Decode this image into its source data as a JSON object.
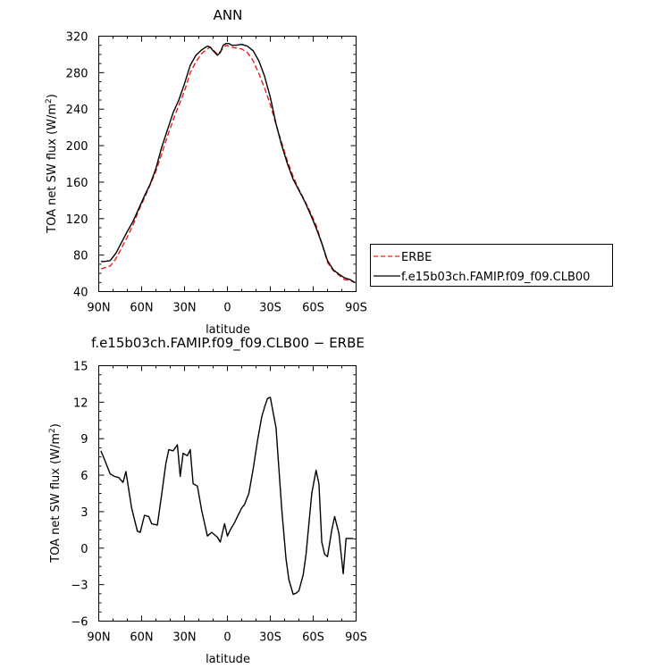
{
  "chart_data": [
    {
      "type": "line",
      "title": "ANN",
      "xlabel": "latitude",
      "ylabel": "TOA net SW flux (W/m",
      "ylabel_sup": "2",
      "ylabel_close": ")",
      "xlim": [
        90,
        -90
      ],
      "ylim": [
        40,
        320
      ],
      "x_ticks": [
        90,
        60,
        30,
        0,
        -30,
        -60,
        -90
      ],
      "x_tick_labels": [
        "90N",
        "60N",
        "30N",
        "0",
        "30S",
        "60S",
        "90S"
      ],
      "y_ticks": [
        40,
        80,
        120,
        160,
        200,
        240,
        280,
        320
      ],
      "y_tick_labels": [
        "40",
        "80",
        "120",
        "160",
        "200",
        "240",
        "280",
        "320"
      ],
      "legend_position": "right",
      "series": [
        {
          "name": "ERBE",
          "color": "#e8201a",
          "dash": "dashed",
          "x": [
            88.5,
            86,
            82,
            78,
            74,
            70,
            66,
            62,
            58,
            54,
            50,
            46,
            42,
            38,
            34,
            30,
            26,
            22,
            18,
            14,
            12,
            10,
            7,
            5,
            3,
            1,
            -1,
            -3,
            -6,
            -10,
            -14,
            -18,
            -22,
            -26,
            -30,
            -34,
            -38,
            -42,
            -46,
            -50,
            -54,
            -58,
            -62,
            -66,
            -70,
            -74,
            -78,
            -82,
            -86,
            -89
          ],
          "values": [
            65,
            66,
            68,
            76,
            88,
            100,
            113,
            129,
            143,
            157,
            172,
            191,
            210,
            228,
            244,
            260,
            280,
            292,
            301,
            306,
            308,
            305,
            300,
            303,
            307,
            310,
            309,
            308,
            307,
            306,
            302,
            293,
            279,
            263,
            245,
            223,
            203,
            183,
            166,
            152,
            140,
            127,
            113,
            93,
            72,
            63,
            58,
            53,
            52,
            50
          ]
        },
        {
          "name": "f.e15b03ch.FAMIP.f09_f09.CLB00",
          "color": "#000000",
          "dash": "solid",
          "x": [
            88.5,
            86,
            82,
            78,
            74,
            70,
            66,
            62,
            58,
            54,
            50,
            46,
            42,
            38,
            34,
            30,
            26,
            22,
            18,
            14,
            12,
            10,
            7,
            5,
            3,
            1,
            -1,
            -3,
            -6,
            -10,
            -14,
            -18,
            -22,
            -26,
            -30,
            -34,
            -38,
            -42,
            -46,
            -50,
            -54,
            -58,
            -62,
            -66,
            -70,
            -74,
            -78,
            -82,
            -86,
            -89
          ],
          "values": [
            73,
            73,
            74,
            82,
            94,
            106,
            117,
            131,
            145,
            158,
            175,
            198,
            217,
            236,
            250,
            268,
            288,
            299,
            305,
            309,
            308,
            304,
            299,
            302,
            310,
            312,
            312,
            310,
            310,
            311,
            309,
            304,
            293,
            276,
            253,
            224,
            200,
            180,
            163,
            151,
            139,
            125,
            110,
            93,
            74,
            64,
            59,
            55,
            53,
            50
          ]
        }
      ]
    },
    {
      "type": "line",
      "title": "f.e15b03ch.FAMIP.f09_f09.CLB00 − ERBE",
      "xlabel": "latitude",
      "ylabel": "TOA net SW flux (W/m",
      "ylabel_sup": "2",
      "ylabel_close": ")",
      "xlim": [
        90,
        -90
      ],
      "ylim": [
        -6,
        15
      ],
      "x_ticks": [
        90,
        60,
        30,
        0,
        -30,
        -60,
        -90
      ],
      "x_tick_labels": [
        "90N",
        "60N",
        "30N",
        "0",
        "30S",
        "60S",
        "90S"
      ],
      "y_ticks": [
        -6,
        -3,
        0,
        3,
        6,
        9,
        12,
        15
      ],
      "y_tick_labels": [
        "−6",
        "−3",
        "0",
        "3",
        "6",
        "9",
        "12",
        "15"
      ],
      "series": [
        {
          "color": "#000000",
          "dash": "solid",
          "x": [
            88.5,
            86,
            82,
            79,
            76,
            73,
            71,
            67,
            63,
            61,
            58,
            55,
            53,
            49,
            46,
            43,
            41,
            38,
            35,
            33,
            31,
            28,
            26,
            24,
            21,
            18,
            14,
            11,
            7,
            5,
            2,
            0,
            -2,
            -5,
            -7,
            -10,
            -12,
            -15,
            -18,
            -21,
            -24,
            -26,
            -28,
            -30,
            -34,
            -38,
            -41,
            -43,
            -46,
            -48,
            -50,
            -53,
            -55,
            -57,
            -59,
            -62,
            -64,
            -66,
            -68,
            -70,
            -73,
            -75,
            -78,
            -81,
            -83,
            -85,
            -88
          ],
          "values": [
            8,
            7.3,
            6.1,
            5.9,
            5.8,
            5.4,
            6.3,
            3.3,
            1.4,
            1.3,
            2.7,
            2.6,
            2,
            1.9,
            4.4,
            7,
            8.1,
            8,
            8.5,
            5.9,
            7.8,
            7.6,
            8.1,
            5.3,
            5.1,
            3.1,
            1,
            1.3,
            0.9,
            0.5,
            2,
            1,
            1.5,
            2.1,
            2.6,
            3.3,
            3.6,
            4.5,
            6.5,
            8.8,
            10.8,
            11.6,
            12.3,
            12.4,
            9.9,
            3.2,
            -0.9,
            -2.6,
            -3.8,
            -3.7,
            -3.5,
            -2.2,
            -0.5,
            2,
            4.5,
            6.4,
            5.3,
            0.5,
            -0.5,
            -0.7,
            1.5,
            2.6,
            1.2,
            -2.1,
            0.8,
            0.8,
            0.8
          ]
        }
      ]
    }
  ]
}
